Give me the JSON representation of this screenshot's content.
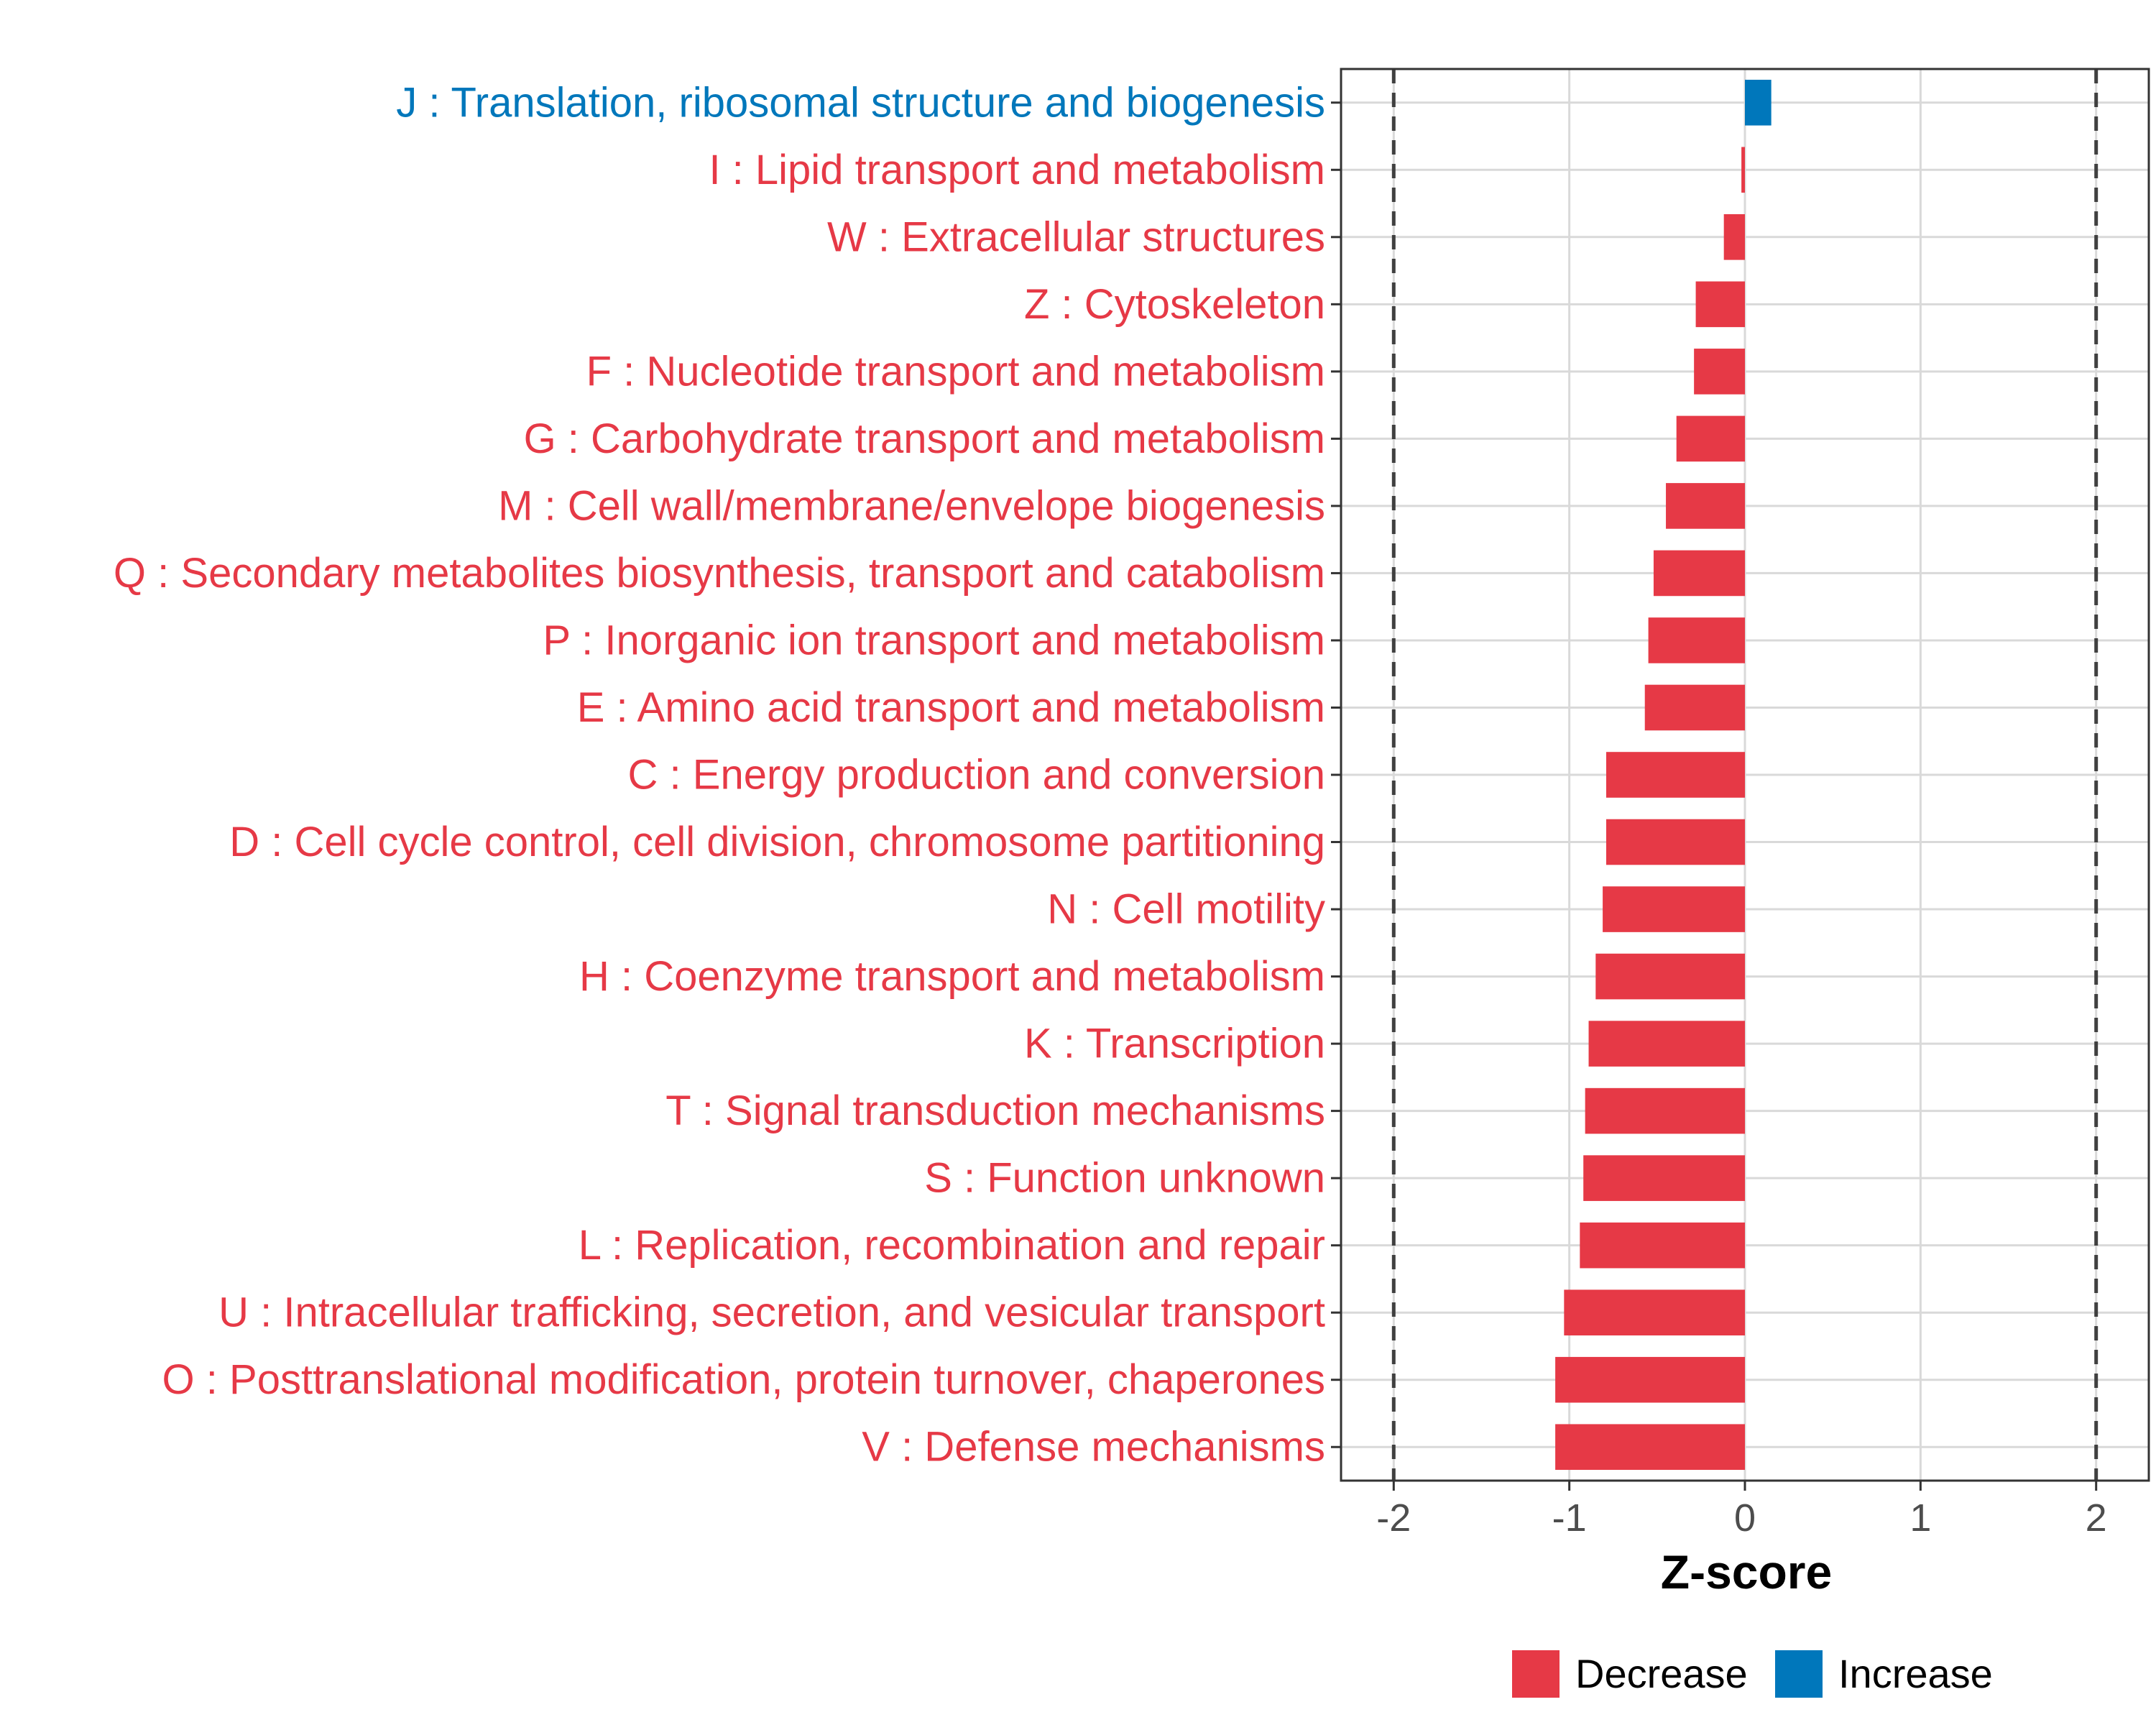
{
  "chart_data": {
    "type": "bar",
    "orientation": "horizontal",
    "title": "",
    "xlabel": "Z-score",
    "ylabel": "",
    "xlim": [
      -2.3,
      2.3
    ],
    "xticks": [
      -2,
      -1,
      0,
      1,
      2
    ],
    "xtick_labels": [
      "-2",
      "-1",
      "0",
      "1",
      "2"
    ],
    "threshold_lines": [
      -2,
      2
    ],
    "grid": true,
    "categories": [
      "J : Translation, ribosomal structure and biogenesis",
      "I : Lipid transport and metabolism",
      "W : Extracellular structures",
      "Z : Cytoskeleton",
      "F : Nucleotide transport and metabolism",
      "G : Carbohydrate transport and metabolism",
      "M : Cell wall/membrane/envelope biogenesis",
      "Q : Secondary metabolites biosynthesis, transport and catabolism",
      "P : Inorganic ion transport and metabolism",
      "E : Amino acid transport and metabolism",
      "C : Energy production and conversion",
      "D : Cell cycle control, cell division, chromosome partitioning",
      "N : Cell motility",
      "H : Coenzyme transport and metabolism",
      "K : Transcription",
      "T : Signal transduction mechanisms",
      "S : Function unknown",
      "L : Replication, recombination and repair",
      "U : Intracellular trafficking, secretion, and vesicular transport",
      "O : Posttranslational modification, protein turnover, chaperones",
      "V : Defense mechanisms"
    ],
    "values": [
      0.15,
      -0.02,
      -0.12,
      -0.28,
      -0.29,
      -0.39,
      -0.45,
      -0.52,
      -0.55,
      -0.57,
      -0.79,
      -0.79,
      -0.81,
      -0.85,
      -0.89,
      -0.91,
      -0.92,
      -0.94,
      -1.03,
      -1.08,
      -1.08
    ],
    "direction": [
      "Increase",
      "Decrease",
      "Decrease",
      "Decrease",
      "Decrease",
      "Decrease",
      "Decrease",
      "Decrease",
      "Decrease",
      "Decrease",
      "Decrease",
      "Decrease",
      "Decrease",
      "Decrease",
      "Decrease",
      "Decrease",
      "Decrease",
      "Decrease",
      "Decrease",
      "Decrease",
      "Decrease"
    ],
    "legend": {
      "position": "bottom",
      "entries": [
        {
          "label": "Decrease",
          "color": "#e63946"
        },
        {
          "label": "Increase",
          "color": "#0077bb"
        }
      ]
    },
    "colors": {
      "Decrease": "#e63946",
      "Increase": "#0077bb",
      "grid": "#d9d9d9",
      "panel_border": "#333333",
      "threshold": "#404040"
    }
  }
}
